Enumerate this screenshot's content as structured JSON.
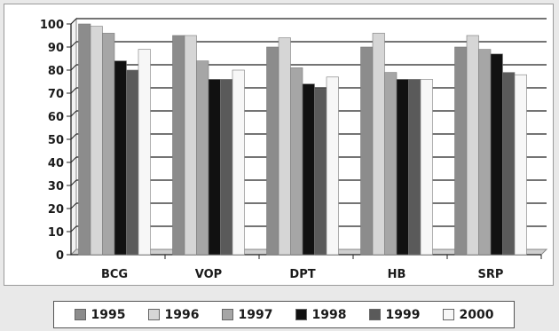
{
  "chart_data": {
    "type": "bar",
    "categories": [
      "BCG",
      "VOP",
      "DPT",
      "HB",
      "SRP"
    ],
    "series": [
      {
        "name": "1995",
        "values": [
          100,
          95,
          90,
          90,
          90
        ],
        "color": "#8c8c8c"
      },
      {
        "name": "1996",
        "values": [
          99,
          95,
          94,
          96,
          95
        ],
        "color": "#d6d6d6"
      },
      {
        "name": "1997",
        "values": [
          96,
          84,
          81,
          79,
          89
        ],
        "color": "#a6a6a6"
      },
      {
        "name": "1998",
        "values": [
          84,
          76,
          74,
          76,
          87
        ],
        "color": "#111111"
      },
      {
        "name": "1999",
        "values": [
          80,
          76,
          72,
          76,
          79
        ],
        "color": "#5a5a5a"
      },
      {
        "name": "2000",
        "values": [
          89,
          80,
          77,
          76,
          78
        ],
        "color": "#f7f7f7"
      }
    ],
    "yticks": [
      0,
      10,
      20,
      30,
      40,
      50,
      60,
      70,
      80,
      90,
      100
    ],
    "ylim": [
      0,
      100
    ],
    "grid": true,
    "legend_position": "bottom",
    "title": "",
    "xlabel": "",
    "ylabel": ""
  }
}
